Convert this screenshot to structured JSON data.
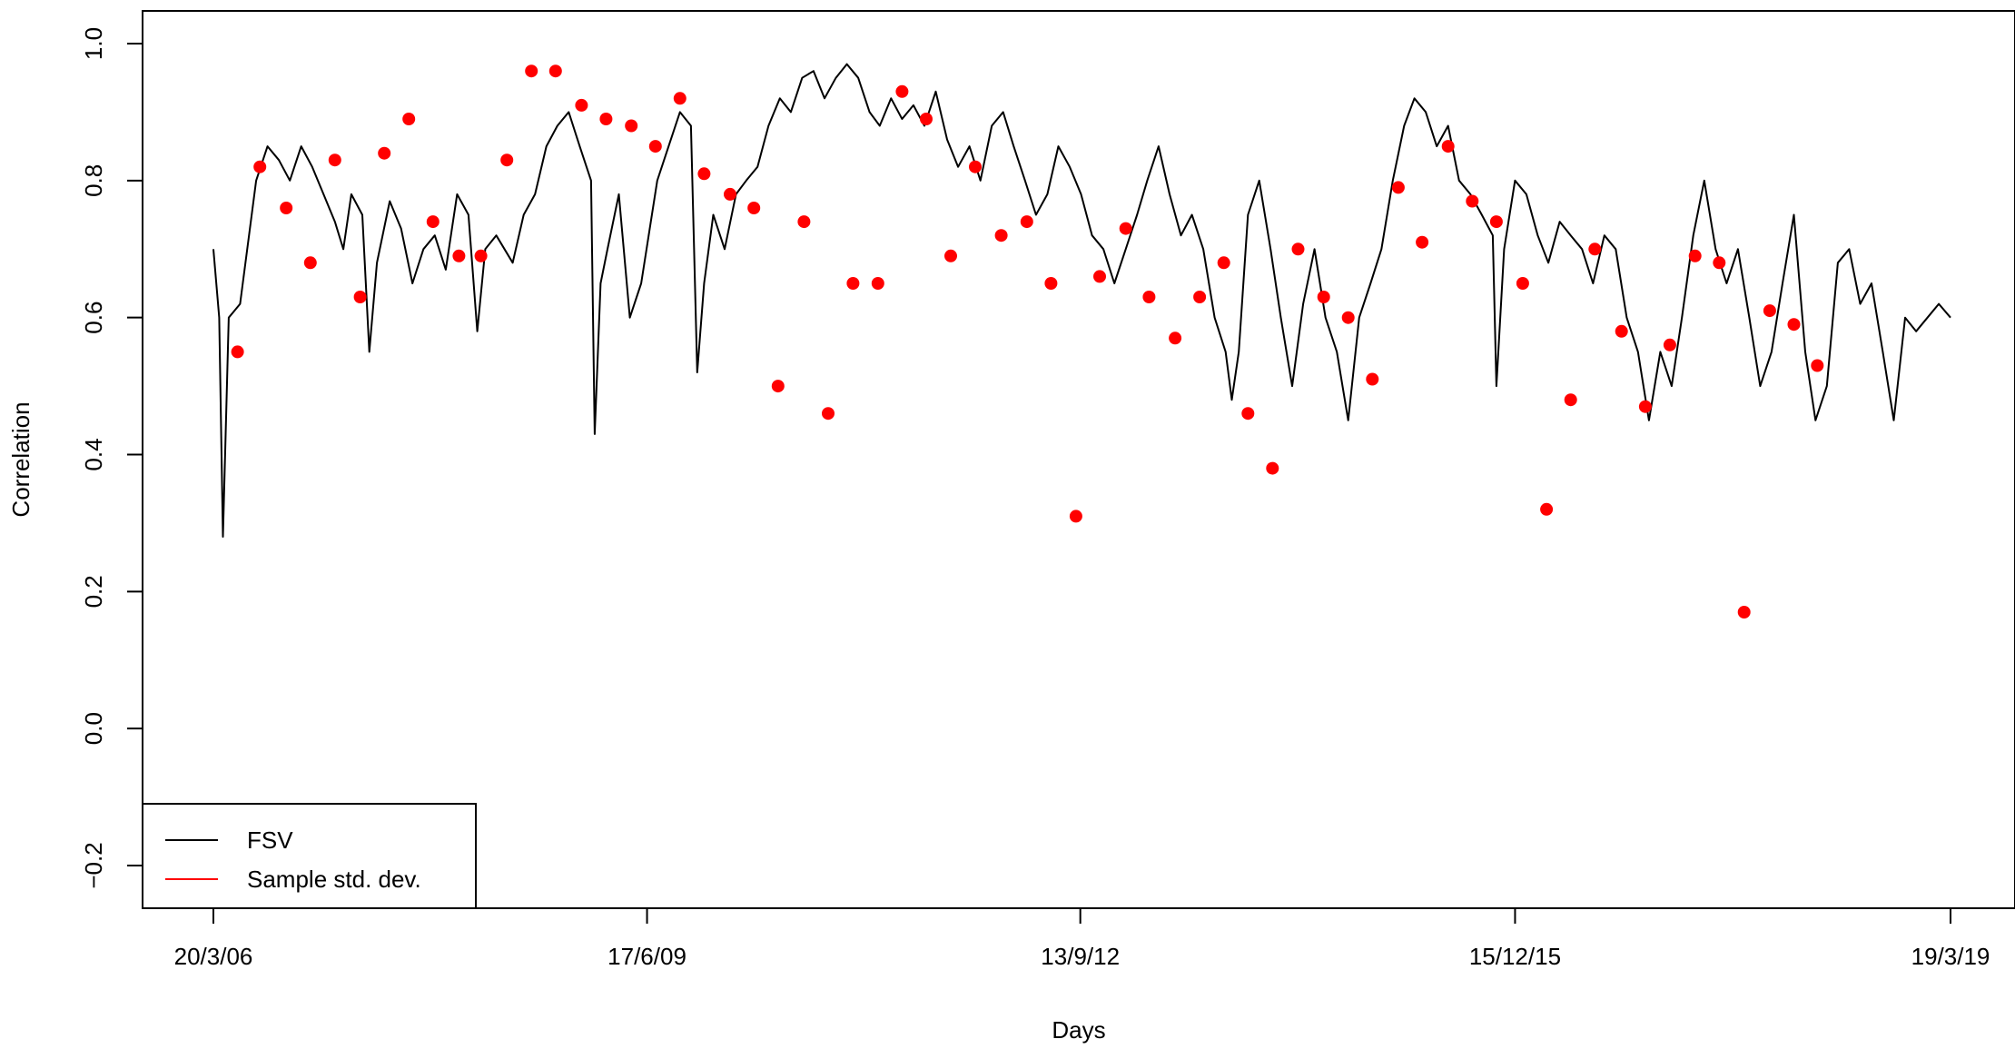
{
  "chart_data": {
    "type": "line",
    "xlabel": "Days",
    "ylabel": "Correlation",
    "xlim": [
      "2006-03-20",
      "2019-03-19"
    ],
    "ylim": [
      -0.2,
      1.0
    ],
    "x_ticks": [
      {
        "date": "2006-03-20",
        "label": "20/3/06"
      },
      {
        "date": "2009-06-17",
        "label": "17/6/09"
      },
      {
        "date": "2012-09-13",
        "label": "13/9/12"
      },
      {
        "date": "2015-12-15",
        "label": "15/12/15"
      },
      {
        "date": "2019-03-19",
        "label": "19/3/19"
      }
    ],
    "y_ticks": [
      {
        "value": -0.2,
        "label": "−0.2"
      },
      {
        "value": 0.0,
        "label": "0.0"
      },
      {
        "value": 0.2,
        "label": "0.2"
      },
      {
        "value": 0.4,
        "label": "0.4"
      },
      {
        "value": 0.6,
        "label": "0.6"
      },
      {
        "value": 0.8,
        "label": "0.8"
      },
      {
        "value": 1.0,
        "label": "1.0"
      }
    ],
    "grid": false,
    "legend": {
      "placement": "bottom-left",
      "entries": [
        {
          "label": "FSV",
          "color": "#000000"
        },
        {
          "label": "Sample std. dev.",
          "color": "#ff0000"
        }
      ]
    },
    "series": [
      {
        "name": "FSV",
        "color": "#000000",
        "points": [
          [
            "2006-03-20",
            0.7
          ],
          [
            "2006-04-05",
            0.6
          ],
          [
            "2006-04-15",
            0.28
          ],
          [
            "2006-05-01",
            0.6
          ],
          [
            "2006-06-01",
            0.62
          ],
          [
            "2006-07-15",
            0.8
          ],
          [
            "2006-08-15",
            0.85
          ],
          [
            "2006-09-15",
            0.83
          ],
          [
            "2006-10-15",
            0.8
          ],
          [
            "2006-11-15",
            0.85
          ],
          [
            "2006-12-15",
            0.82
          ],
          [
            "2007-01-15",
            0.78
          ],
          [
            "2007-02-15",
            0.74
          ],
          [
            "2007-03-10",
            0.7
          ],
          [
            "2007-04-01",
            0.78
          ],
          [
            "2007-05-01",
            0.75
          ],
          [
            "2007-05-20",
            0.55
          ],
          [
            "2007-06-10",
            0.68
          ],
          [
            "2007-07-15",
            0.77
          ],
          [
            "2007-08-15",
            0.73
          ],
          [
            "2007-09-15",
            0.65
          ],
          [
            "2007-10-15",
            0.7
          ],
          [
            "2007-11-15",
            0.72
          ],
          [
            "2007-12-15",
            0.67
          ],
          [
            "2008-01-15",
            0.78
          ],
          [
            "2008-02-15",
            0.75
          ],
          [
            "2008-03-10",
            0.58
          ],
          [
            "2008-04-01",
            0.7
          ],
          [
            "2008-05-01",
            0.72
          ],
          [
            "2008-06-15",
            0.68
          ],
          [
            "2008-07-15",
            0.75
          ],
          [
            "2008-08-15",
            0.78
          ],
          [
            "2008-09-15",
            0.85
          ],
          [
            "2008-10-15",
            0.88
          ],
          [
            "2008-11-15",
            0.9
          ],
          [
            "2008-12-15",
            0.85
          ],
          [
            "2009-01-15",
            0.8
          ],
          [
            "2009-01-25",
            0.43
          ],
          [
            "2009-02-10",
            0.65
          ],
          [
            "2009-03-01",
            0.7
          ],
          [
            "2009-04-01",
            0.78
          ],
          [
            "2009-05-01",
            0.6
          ],
          [
            "2009-06-01",
            0.65
          ],
          [
            "2009-07-15",
            0.8
          ],
          [
            "2009-08-15",
            0.85
          ],
          [
            "2009-09-15",
            0.9
          ],
          [
            "2009-10-15",
            0.88
          ],
          [
            "2009-11-01",
            0.52
          ],
          [
            "2009-11-20",
            0.65
          ],
          [
            "2009-12-15",
            0.75
          ],
          [
            "2010-01-15",
            0.7
          ],
          [
            "2010-02-15",
            0.78
          ],
          [
            "2010-03-15",
            0.8
          ],
          [
            "2010-04-15",
            0.82
          ],
          [
            "2010-05-15",
            0.88
          ],
          [
            "2010-06-15",
            0.92
          ],
          [
            "2010-07-15",
            0.9
          ],
          [
            "2010-08-15",
            0.95
          ],
          [
            "2010-09-15",
            0.96
          ],
          [
            "2010-10-15",
            0.92
          ],
          [
            "2010-11-15",
            0.95
          ],
          [
            "2010-12-15",
            0.97
          ],
          [
            "2011-01-15",
            0.95
          ],
          [
            "2011-02-15",
            0.9
          ],
          [
            "2011-03-15",
            0.88
          ],
          [
            "2011-04-15",
            0.92
          ],
          [
            "2011-05-15",
            0.89
          ],
          [
            "2011-06-15",
            0.91
          ],
          [
            "2011-07-15",
            0.88
          ],
          [
            "2011-08-15",
            0.93
          ],
          [
            "2011-09-15",
            0.86
          ],
          [
            "2011-10-15",
            0.82
          ],
          [
            "2011-11-15",
            0.85
          ],
          [
            "2011-12-15",
            0.8
          ],
          [
            "2012-01-15",
            0.88
          ],
          [
            "2012-02-15",
            0.9
          ],
          [
            "2012-03-15",
            0.85
          ],
          [
            "2012-04-15",
            0.8
          ],
          [
            "2012-05-15",
            0.75
          ],
          [
            "2012-06-15",
            0.78
          ],
          [
            "2012-07-15",
            0.85
          ],
          [
            "2012-08-15",
            0.82
          ],
          [
            "2012-09-15",
            0.78
          ],
          [
            "2012-10-15",
            0.72
          ],
          [
            "2012-11-15",
            0.7
          ],
          [
            "2012-12-15",
            0.65
          ],
          [
            "2013-01-15",
            0.7
          ],
          [
            "2013-02-15",
            0.75
          ],
          [
            "2013-03-15",
            0.8
          ],
          [
            "2013-04-15",
            0.85
          ],
          [
            "2013-05-15",
            0.78
          ],
          [
            "2013-06-15",
            0.72
          ],
          [
            "2013-07-15",
            0.75
          ],
          [
            "2013-08-15",
            0.7
          ],
          [
            "2013-09-15",
            0.6
          ],
          [
            "2013-10-15",
            0.55
          ],
          [
            "2013-11-01",
            0.48
          ],
          [
            "2013-11-20",
            0.55
          ],
          [
            "2013-12-15",
            0.75
          ],
          [
            "2014-01-15",
            0.8
          ],
          [
            "2014-02-15",
            0.7
          ],
          [
            "2014-03-15",
            0.6
          ],
          [
            "2014-04-15",
            0.5
          ],
          [
            "2014-05-15",
            0.62
          ],
          [
            "2014-06-15",
            0.7
          ],
          [
            "2014-07-15",
            0.6
          ],
          [
            "2014-08-15",
            0.55
          ],
          [
            "2014-09-15",
            0.45
          ],
          [
            "2014-10-15",
            0.6
          ],
          [
            "2014-11-15",
            0.65
          ],
          [
            "2014-12-15",
            0.7
          ],
          [
            "2015-01-15",
            0.8
          ],
          [
            "2015-02-15",
            0.88
          ],
          [
            "2015-03-15",
            0.92
          ],
          [
            "2015-04-15",
            0.9
          ],
          [
            "2015-05-15",
            0.85
          ],
          [
            "2015-06-15",
            0.88
          ],
          [
            "2015-07-15",
            0.8
          ],
          [
            "2015-08-15",
            0.78
          ],
          [
            "2015-09-15",
            0.75
          ],
          [
            "2015-10-15",
            0.72
          ],
          [
            "2015-10-25",
            0.5
          ],
          [
            "2015-11-15",
            0.7
          ],
          [
            "2015-12-15",
            0.8
          ],
          [
            "2016-01-15",
            0.78
          ],
          [
            "2016-02-15",
            0.72
          ],
          [
            "2016-03-15",
            0.68
          ],
          [
            "2016-04-15",
            0.74
          ],
          [
            "2016-05-15",
            0.72
          ],
          [
            "2016-06-15",
            0.7
          ],
          [
            "2016-07-15",
            0.65
          ],
          [
            "2016-08-15",
            0.72
          ],
          [
            "2016-09-15",
            0.7
          ],
          [
            "2016-10-15",
            0.6
          ],
          [
            "2016-11-15",
            0.55
          ],
          [
            "2016-12-15",
            0.45
          ],
          [
            "2017-01-15",
            0.55
          ],
          [
            "2017-02-15",
            0.5
          ],
          [
            "2017-03-15",
            0.6
          ],
          [
            "2017-04-15",
            0.72
          ],
          [
            "2017-05-15",
            0.8
          ],
          [
            "2017-06-15",
            0.7
          ],
          [
            "2017-07-15",
            0.65
          ],
          [
            "2017-08-15",
            0.7
          ],
          [
            "2017-09-15",
            0.6
          ],
          [
            "2017-10-15",
            0.5
          ],
          [
            "2017-11-15",
            0.55
          ],
          [
            "2017-12-15",
            0.65
          ],
          [
            "2018-01-15",
            0.75
          ],
          [
            "2018-02-15",
            0.55
          ],
          [
            "2018-03-15",
            0.45
          ],
          [
            "2018-04-15",
            0.5
          ],
          [
            "2018-05-15",
            0.68
          ],
          [
            "2018-06-15",
            0.7
          ],
          [
            "2018-07-15",
            0.62
          ],
          [
            "2018-08-15",
            0.65
          ],
          [
            "2018-09-15",
            0.55
          ],
          [
            "2018-10-15",
            0.45
          ],
          [
            "2018-11-15",
            0.6
          ],
          [
            "2018-12-15",
            0.58
          ],
          [
            "2019-01-15",
            0.6
          ],
          [
            "2019-02-15",
            0.62
          ],
          [
            "2019-03-19",
            0.6
          ]
        ]
      },
      {
        "name": "Sample std. dev.",
        "color": "#ff0000",
        "points": [
          [
            "2006-05-25",
            0.55
          ],
          [
            "2006-07-25",
            0.82
          ],
          [
            "2006-10-05",
            0.76
          ],
          [
            "2006-12-10",
            0.68
          ],
          [
            "2007-02-15",
            0.83
          ],
          [
            "2007-04-25",
            0.63
          ],
          [
            "2007-06-30",
            0.84
          ],
          [
            "2007-09-05",
            0.89
          ],
          [
            "2007-11-10",
            0.74
          ],
          [
            "2008-01-20",
            0.69
          ],
          [
            "2008-03-20",
            0.69
          ],
          [
            "2008-05-30",
            0.83
          ],
          [
            "2008-08-05",
            0.96
          ],
          [
            "2008-10-10",
            0.96
          ],
          [
            "2008-12-20",
            0.91
          ],
          [
            "2009-02-25",
            0.89
          ],
          [
            "2009-05-05",
            0.88
          ],
          [
            "2009-07-10",
            0.85
          ],
          [
            "2009-09-15",
            0.92
          ],
          [
            "2009-11-20",
            0.81
          ],
          [
            "2010-01-30",
            0.78
          ],
          [
            "2010-04-05",
            0.76
          ],
          [
            "2010-06-10",
            0.5
          ],
          [
            "2010-08-20",
            0.74
          ],
          [
            "2010-10-25",
            0.46
          ],
          [
            "2011-01-01",
            0.65
          ],
          [
            "2011-03-10",
            0.65
          ],
          [
            "2011-05-15",
            0.93
          ],
          [
            "2011-07-20",
            0.89
          ],
          [
            "2011-09-25",
            0.69
          ],
          [
            "2011-12-01",
            0.82
          ],
          [
            "2012-02-10",
            0.72
          ],
          [
            "2012-04-20",
            0.74
          ],
          [
            "2012-06-25",
            0.65
          ],
          [
            "2012-09-01",
            0.31
          ],
          [
            "2012-11-05",
            0.66
          ],
          [
            "2013-01-15",
            0.73
          ],
          [
            "2013-03-20",
            0.63
          ],
          [
            "2013-05-30",
            0.57
          ],
          [
            "2013-08-05",
            0.63
          ],
          [
            "2013-10-10",
            0.68
          ],
          [
            "2013-12-15",
            0.46
          ],
          [
            "2014-02-20",
            0.38
          ],
          [
            "2014-05-01",
            0.7
          ],
          [
            "2014-07-10",
            0.63
          ],
          [
            "2014-09-15",
            0.6
          ],
          [
            "2014-11-20",
            0.51
          ],
          [
            "2015-01-30",
            0.79
          ],
          [
            "2015-04-05",
            0.71
          ],
          [
            "2015-06-15",
            0.85
          ],
          [
            "2015-08-20",
            0.77
          ],
          [
            "2015-10-25",
            0.74
          ],
          [
            "2016-01-05",
            0.65
          ],
          [
            "2016-03-10",
            0.32
          ],
          [
            "2016-05-15",
            0.48
          ],
          [
            "2016-07-20",
            0.7
          ],
          [
            "2016-10-01",
            0.58
          ],
          [
            "2016-12-05",
            0.47
          ],
          [
            "2017-02-10",
            0.56
          ],
          [
            "2017-04-20",
            0.69
          ],
          [
            "2017-06-25",
            0.68
          ],
          [
            "2017-09-01",
            0.17
          ],
          [
            "2017-11-10",
            0.61
          ],
          [
            "2018-01-15",
            0.59
          ],
          [
            "2018-03-20",
            0.53
          ]
        ]
      }
    ]
  }
}
